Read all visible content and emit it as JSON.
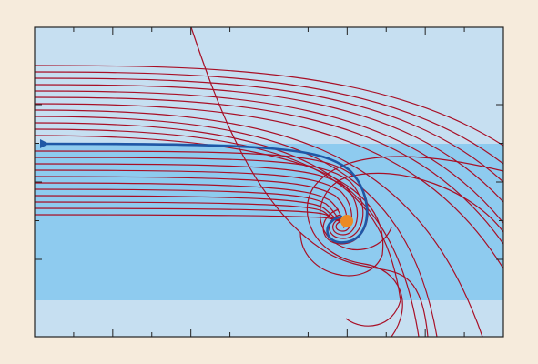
{
  "figure": {
    "background_color": "#f6ebdc",
    "outer_band_color": "#c6dff1",
    "inner_band_color": "#8ecbef",
    "streamline_color": "#a80f26",
    "trajectory_color": "#1f57a6",
    "target_marker_color": "#eb8a24",
    "axis_color": "#222222"
  },
  "labels": {
    "title": "",
    "xlabel": "",
    "ylabel": ""
  }
}
